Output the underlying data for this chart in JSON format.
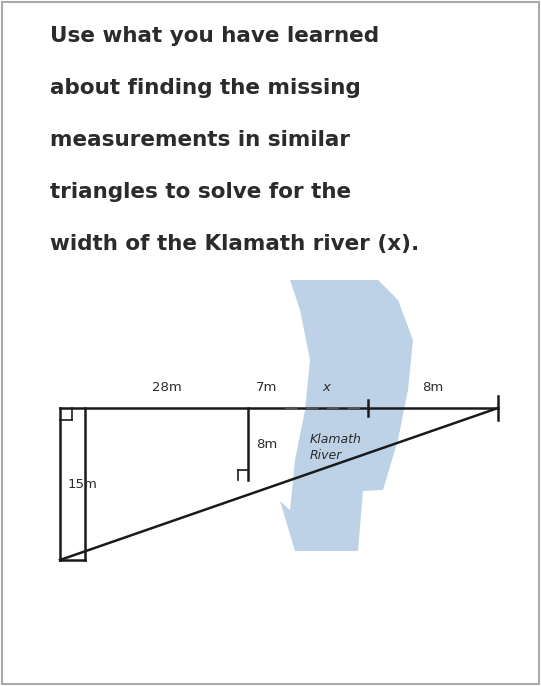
{
  "title_text": "Use what you have learned\nabout finding the missing\nmeasurements in similar\ntriangles to solve for the\nwidth of the Klamath river (x).",
  "title_fontsize": 15.5,
  "title_color": "#2b2b2b",
  "bg_color": "#ffffff",
  "river_color": "#a8c4df",
  "label_28m": "28m",
  "label_15m": "15m",
  "label_8m_post": "8m",
  "label_7m": "7m",
  "label_x": "x",
  "label_8m_right": "8m",
  "label_river": "Klamath\nRiver",
  "line_color": "#1a1a1a",
  "dashed_color": "#555555",
  "label_fs": 9.5
}
